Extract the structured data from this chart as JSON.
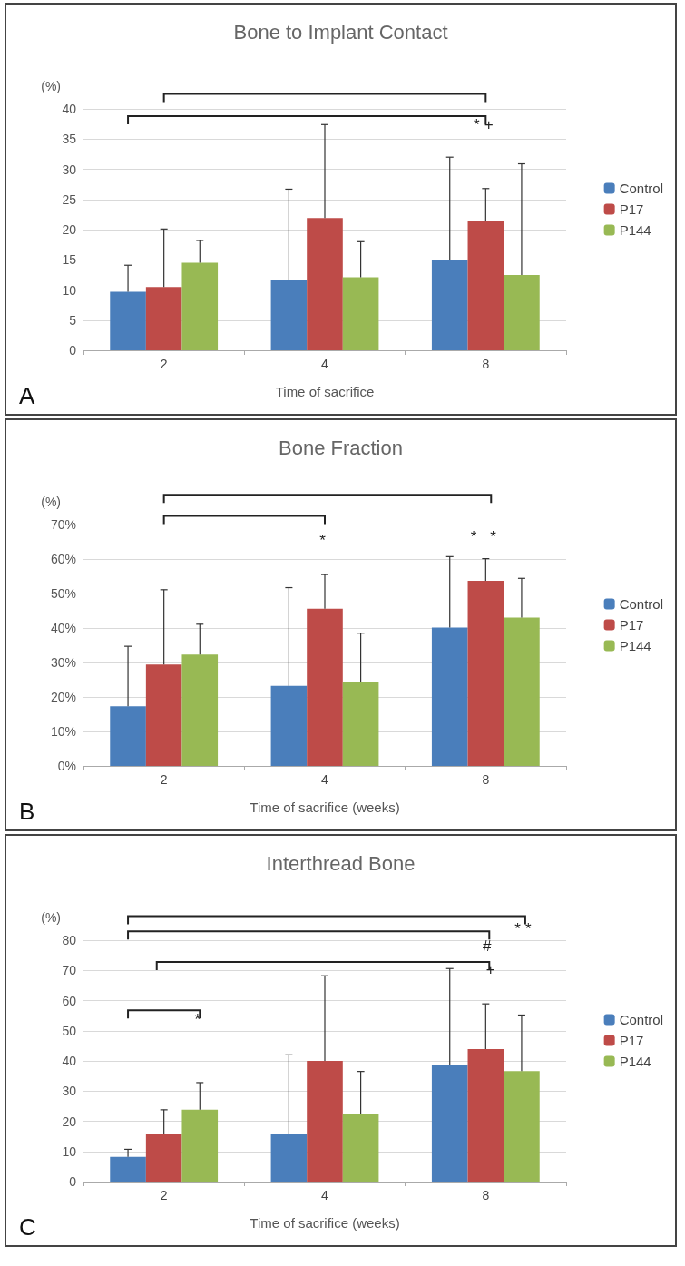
{
  "chart_data": [
    {
      "type": "bar",
      "title": "Bone to Implant Contact",
      "xlabel": "Time of sacrifice",
      "ylabel": "(%)",
      "categories": [
        "2",
        "4",
        "8"
      ],
      "series": [
        {
          "name": "Control",
          "color": "#4a7ebb",
          "values": [
            9.7,
            11.6,
            14.9
          ],
          "errors": [
            [
              9.7,
              14.1
            ],
            [
              11.6,
              26.7
            ],
            [
              14.9,
              32.0
            ]
          ]
        },
        {
          "name": "P17",
          "color": "#be4b48",
          "values": [
            10.5,
            21.9,
            21.4
          ],
          "errors": [
            [
              10.5,
              20.1
            ],
            [
              21.9,
              37.4
            ],
            [
              21.4,
              26.8
            ]
          ]
        },
        {
          "name": "P144",
          "color": "#98b954",
          "values": [
            14.5,
            12.1,
            12.5
          ],
          "errors": [
            [
              14.5,
              18.2
            ],
            [
              12.1,
              18.0
            ],
            [
              12.5,
              30.9
            ]
          ]
        }
      ],
      "ylim": [
        0,
        40
      ],
      "yticks": [
        0,
        5,
        10,
        15,
        20,
        25,
        30,
        35,
        40
      ],
      "grid": "y",
      "legend": "right",
      "annotations": [
        "*+",
        "A"
      ]
    },
    {
      "type": "bar",
      "title": "Bone Fraction",
      "xlabel": "Time of sacrifice (weeks)",
      "ylabel": "(%)",
      "categories": [
        "2",
        "4",
        "8"
      ],
      "series": [
        {
          "name": "Control",
          "color": "#4a7ebb",
          "values": [
            17.3,
            23.2,
            40.1
          ],
          "errors": [
            [
              17.3,
              34.7
            ],
            [
              23.2,
              51.7
            ],
            [
              40.1,
              60.7
            ]
          ]
        },
        {
          "name": "P17",
          "color": "#be4b48",
          "values": [
            29.4,
            45.6,
            53.7
          ],
          "errors": [
            [
              29.4,
              51.1
            ],
            [
              45.6,
              55.5
            ],
            [
              53.7,
              60.1
            ]
          ]
        },
        {
          "name": "P144",
          "color": "#98b954",
          "values": [
            32.3,
            24.4,
            43.0
          ],
          "errors": [
            [
              32.3,
              41.1
            ],
            [
              24.4,
              38.5
            ],
            [
              43.0,
              54.4
            ]
          ]
        }
      ],
      "ylim": [
        0,
        70
      ],
      "yticks": [
        {
          "value": 0,
          "label": "0%"
        },
        {
          "value": 10,
          "label": "10%"
        },
        {
          "value": 20,
          "label": "20%"
        },
        {
          "value": 30,
          "label": "30%"
        },
        {
          "value": 40,
          "label": "40%"
        },
        {
          "value": 50,
          "label": "50%"
        },
        {
          "value": 60,
          "label": "60%"
        },
        {
          "value": 70,
          "label": "70%"
        }
      ],
      "grid": "y",
      "legend": "right",
      "annotations": [
        "*",
        "* *",
        "B"
      ]
    },
    {
      "type": "bar",
      "title": "Interthread Bone",
      "xlabel": "Time of sacrifice (weeks)",
      "ylabel": "(%)",
      "categories": [
        "2",
        "4",
        "8"
      ],
      "series": [
        {
          "name": "Control",
          "color": "#4a7ebb",
          "values": [
            8.2,
            15.8,
            38.5
          ],
          "errors": [
            [
              8.2,
              10.7
            ],
            [
              15.8,
              42.0
            ],
            [
              38.5,
              70.6
            ]
          ]
        },
        {
          "name": "P17",
          "color": "#be4b48",
          "values": [
            15.7,
            40.0,
            43.9
          ],
          "errors": [
            [
              15.7,
              23.8
            ],
            [
              40.0,
              68.2
            ],
            [
              43.9,
              58.9
            ]
          ]
        },
        {
          "name": "P144",
          "color": "#98b954",
          "values": [
            23.8,
            22.3,
            36.6
          ],
          "errors": [
            [
              23.8,
              32.8
            ],
            [
              22.3,
              36.5
            ],
            [
              36.6,
              55.2
            ]
          ]
        }
      ],
      "ylim": [
        0,
        80
      ],
      "yticks": [
        0,
        10,
        20,
        30,
        40,
        50,
        60,
        70,
        80
      ],
      "grid": "y",
      "legend": "right",
      "annotations": [
        "**",
        "#",
        "+",
        "*",
        "C"
      ]
    }
  ]
}
